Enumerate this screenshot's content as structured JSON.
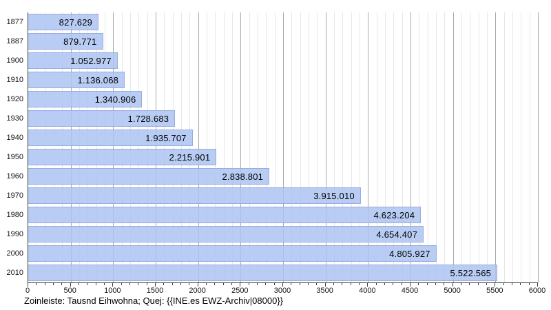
{
  "chart_data": {
    "type": "bar",
    "orientation": "horizontal",
    "title": "",
    "categories": [
      "1877",
      "1887",
      "1900",
      "1910",
      "1920",
      "1930",
      "1940",
      "1950",
      "1960",
      "1970",
      "1980",
      "1990",
      "2000",
      "2010"
    ],
    "values": [
      827629,
      879771,
      1052977,
      1136068,
      1340906,
      1728683,
      1935707,
      2215901,
      2838801,
      3915010,
      4623204,
      4654407,
      4805927,
      5522565
    ],
    "value_labels": [
      "827.629",
      "879.771",
      "1.052.977",
      "1.136.068",
      "1.340.906",
      "1.728.683",
      "1.935.707",
      "2.215.901",
      "2.838.801",
      "3.915.010",
      "4.623.204",
      "4.654.407",
      "4.805.927",
      "5.522.565"
    ],
    "value_unit_divisor": 1000,
    "xlim": [
      0,
      6000
    ],
    "x_tick_labels": [
      "0",
      "500",
      "1000",
      "1500",
      "2000",
      "2500",
      "3000",
      "3500",
      "4000",
      "4500",
      "5000",
      "5500",
      "6000"
    ],
    "x_major_step": 500,
    "x_minor_step": 100,
    "grid": "vertical",
    "legend": "none",
    "caption": "Zoinleiste: Tausnd Eihwohna; Quej: {{INE.es EWZ-Archiv|08000}}"
  },
  "colors": {
    "bar_fill": "#b9ccf4",
    "bar_border": "#96aadc",
    "grid_minor": "#e7e7e7",
    "grid_major": "#a8a8a8",
    "axis": "#3c3c3c",
    "text": "#000000",
    "background": "#ffffff"
  }
}
